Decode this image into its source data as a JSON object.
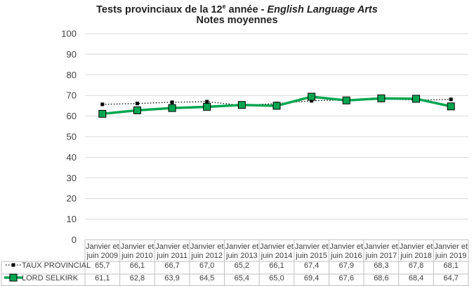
{
  "chart_data": {
    "type": "line",
    "title_parts": {
      "prefix": "Tests provinciaux de la 12",
      "sup": "e",
      "middle": " année - ",
      "italic": "English Language Arts"
    },
    "subtitle": "Notes moyennes",
    "xlabel": "",
    "ylabel": "",
    "ylim": [
      0,
      100
    ],
    "yticks": [
      0,
      10,
      20,
      30,
      40,
      50,
      60,
      70,
      80,
      90,
      100
    ],
    "grid": true,
    "legend_position": "bottom-left-table",
    "categories": [
      [
        "Janvier et",
        "juin 2009"
      ],
      [
        "Janvier et",
        "juin 2010"
      ],
      [
        "Janvier et",
        "juin 2011"
      ],
      [
        "Janvier et",
        "juin 2012"
      ],
      [
        "Janvier et",
        "juin 2013"
      ],
      [
        "Janvier et",
        "juin 2014"
      ],
      [
        "Janvier et",
        "juin 2015"
      ],
      [
        "Janvier et",
        "juin 2016"
      ],
      [
        "Janvier et",
        "juin 2017"
      ],
      [
        "Janvier et",
        "juin 2018"
      ],
      [
        "Janvier et",
        "juin 2019"
      ]
    ],
    "series": [
      {
        "name": "TAUX PROVINCIAL",
        "color": "#000000",
        "style": "dotted",
        "values": [
          65.7,
          66.1,
          66.7,
          67.0,
          65.2,
          66.1,
          67.4,
          67.9,
          68.3,
          67.8,
          68.1
        ],
        "labels": [
          "65,7",
          "66,1",
          "66,7",
          "67,0",
          "65,2",
          "66,1",
          "67,4",
          "67,9",
          "68,3",
          "67,8",
          "68,1"
        ]
      },
      {
        "name": "LORD SELKIRK",
        "color": "#00A651",
        "style": "solid",
        "values": [
          61.1,
          62.8,
          63.9,
          64.5,
          65.4,
          65.0,
          69.4,
          67.6,
          68.6,
          68.4,
          64.7
        ],
        "labels": [
          "61,1",
          "62,8",
          "63,9",
          "64,5",
          "65,4",
          "65,0",
          "69,4",
          "67,6",
          "68,6",
          "68,4",
          "64,7"
        ]
      }
    ]
  }
}
